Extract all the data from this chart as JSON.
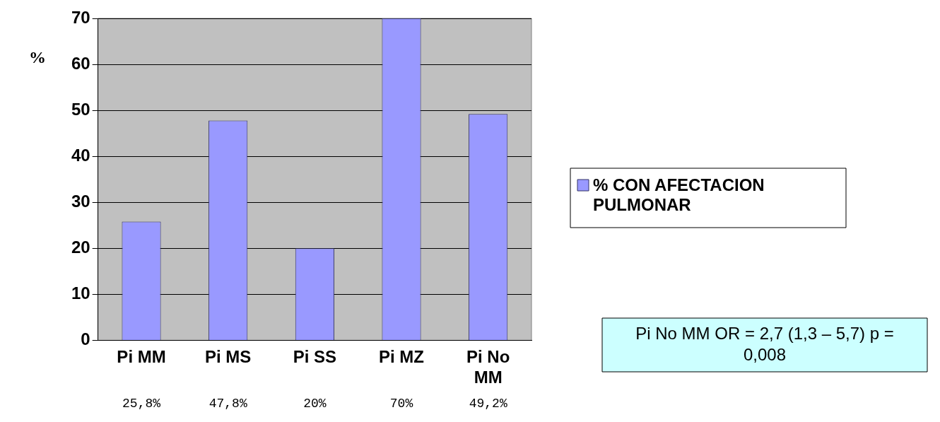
{
  "chart_data": {
    "type": "bar",
    "ylabel": "%",
    "categories": [
      "Pi MM",
      "Pi MS",
      "Pi SS",
      "Pi MZ",
      "Pi No MM"
    ],
    "series": [
      {
        "name": "% CON AFECTACION PULMONAR",
        "color": "#9999ff",
        "values": [
          25.8,
          47.8,
          20,
          70,
          49.2
        ],
        "value_labels": [
          "25,8%",
          "47,8%",
          "20%",
          "70%",
          "49,2%"
        ]
      }
    ],
    "ylim": [
      0,
      70
    ],
    "yticks": [
      0,
      10,
      20,
      30,
      40,
      50,
      60,
      70
    ],
    "grid": "y",
    "legend": "right",
    "annotations": [
      "Pi No MM OR = 2,7 (1,3 – 5,7) p = 0,008"
    ]
  }
}
